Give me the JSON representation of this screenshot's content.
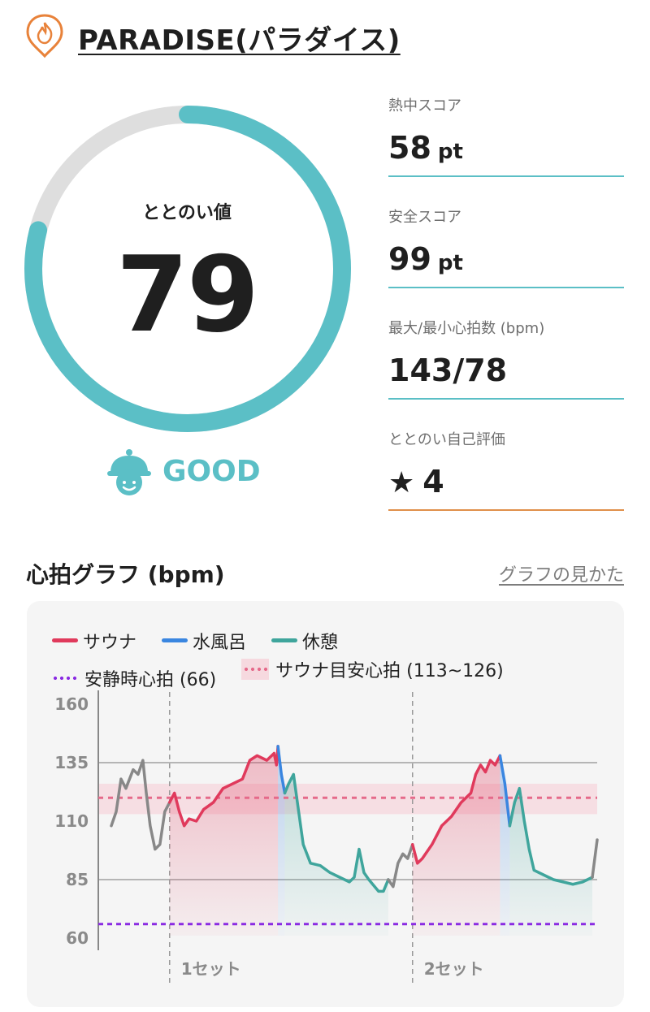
{
  "header": {
    "title": "PARADISE(パラダイス)",
    "logo_icon": "flame-pin-icon"
  },
  "score_ring": {
    "label": "ととのい値",
    "value": "79",
    "fraction": 0.79,
    "color": "#5bbfc6",
    "track_color": "#dedede"
  },
  "status": {
    "label": "GOOD",
    "icon": "helmet-face-icon",
    "color": "#5bbfc6"
  },
  "metrics": [
    {
      "label": "熱中スコア",
      "value": "58",
      "unit": "pt"
    },
    {
      "label": "安全スコア",
      "value": "99",
      "unit": "pt"
    },
    {
      "label": "最大/最小心拍数 (bpm)",
      "value": "143/78",
      "unit": ""
    },
    {
      "label": "ととのい自己評価",
      "value": "4",
      "unit": "",
      "icon": "star-icon"
    }
  ],
  "graph": {
    "title": "心拍グラフ (bpm)",
    "help_link": "グラフの見かた",
    "legend": {
      "sauna": "サウナ",
      "water": "水風呂",
      "rest": "休憩",
      "resting_hr": "安静時心拍 (66)",
      "target_hr": "サウナ目安心拍 (113~126)"
    },
    "colors": {
      "sauna": "#e03a5c",
      "water": "#3a86e0",
      "rest": "#3fa59c",
      "other": "#888888",
      "resting": "#8a2be2",
      "target": "#e56a8a",
      "band": "#f6d9df"
    }
  },
  "chart_data": {
    "type": "line",
    "ylim": [
      60,
      160
    ],
    "yticks": [
      160,
      135,
      110,
      85,
      60
    ],
    "gridlines": [
      135,
      85
    ],
    "resting_hr": 66,
    "target_band": [
      113,
      126
    ],
    "target_line": 120,
    "set_labels": [
      "1セット",
      "2セット"
    ],
    "set_boundaries": [
      0.12,
      0.62
    ],
    "segments": [
      {
        "phase": "other",
        "points": [
          [
            0,
            108
          ],
          [
            0.01,
            114
          ],
          [
            0.02,
            128
          ],
          [
            0.03,
            124
          ],
          [
            0.045,
            132
          ],
          [
            0.055,
            130
          ],
          [
            0.065,
            136
          ],
          [
            0.072,
            122
          ],
          [
            0.08,
            108
          ],
          [
            0.09,
            98
          ],
          [
            0.1,
            100
          ],
          [
            0.11,
            114
          ],
          [
            0.12,
            118
          ]
        ]
      },
      {
        "phase": "sauna",
        "points": [
          [
            0.12,
            118
          ],
          [
            0.13,
            122
          ],
          [
            0.14,
            114
          ],
          [
            0.15,
            108
          ],
          [
            0.16,
            111
          ],
          [
            0.175,
            110
          ],
          [
            0.19,
            115
          ],
          [
            0.21,
            118
          ],
          [
            0.23,
            124
          ],
          [
            0.25,
            126
          ],
          [
            0.27,
            128
          ],
          [
            0.285,
            136
          ],
          [
            0.3,
            138
          ],
          [
            0.32,
            136
          ],
          [
            0.335,
            139
          ],
          [
            0.34,
            134
          ],
          [
            0.343,
            142
          ]
        ]
      },
      {
        "phase": "water",
        "points": [
          [
            0.343,
            142
          ],
          [
            0.35,
            130
          ],
          [
            0.357,
            122
          ]
        ]
      },
      {
        "phase": "rest",
        "points": [
          [
            0.357,
            122
          ],
          [
            0.365,
            126
          ],
          [
            0.375,
            130
          ],
          [
            0.385,
            115
          ],
          [
            0.395,
            100
          ],
          [
            0.41,
            92
          ],
          [
            0.43,
            91
          ],
          [
            0.45,
            88
          ],
          [
            0.47,
            86
          ],
          [
            0.49,
            84
          ],
          [
            0.5,
            86
          ],
          [
            0.51,
            98
          ],
          [
            0.52,
            88
          ],
          [
            0.53,
            85
          ],
          [
            0.55,
            80
          ],
          [
            0.56,
            80
          ],
          [
            0.57,
            85
          ]
        ]
      },
      {
        "phase": "other",
        "points": [
          [
            0.57,
            85
          ],
          [
            0.58,
            82
          ],
          [
            0.59,
            92
          ],
          [
            0.6,
            96
          ],
          [
            0.61,
            94
          ],
          [
            0.62,
            100
          ]
        ]
      },
      {
        "phase": "sauna",
        "points": [
          [
            0.62,
            100
          ],
          [
            0.63,
            92
          ],
          [
            0.64,
            94
          ],
          [
            0.66,
            100
          ],
          [
            0.68,
            108
          ],
          [
            0.7,
            112
          ],
          [
            0.72,
            118
          ],
          [
            0.74,
            122
          ],
          [
            0.75,
            130
          ],
          [
            0.76,
            134
          ],
          [
            0.77,
            131
          ],
          [
            0.78,
            136
          ],
          [
            0.79,
            134
          ],
          [
            0.8,
            138
          ]
        ]
      },
      {
        "phase": "water",
        "points": [
          [
            0.8,
            138
          ],
          [
            0.81,
            126
          ],
          [
            0.82,
            108
          ]
        ]
      },
      {
        "phase": "rest",
        "points": [
          [
            0.82,
            108
          ],
          [
            0.83,
            118
          ],
          [
            0.84,
            124
          ],
          [
            0.85,
            110
          ],
          [
            0.86,
            98
          ],
          [
            0.87,
            89
          ],
          [
            0.89,
            87
          ],
          [
            0.91,
            85
          ],
          [
            0.93,
            84
          ],
          [
            0.95,
            83
          ],
          [
            0.97,
            84
          ],
          [
            0.99,
            86
          ]
        ]
      },
      {
        "phase": "other",
        "points": [
          [
            0.99,
            86
          ],
          [
            1.0,
            102
          ]
        ]
      }
    ]
  }
}
